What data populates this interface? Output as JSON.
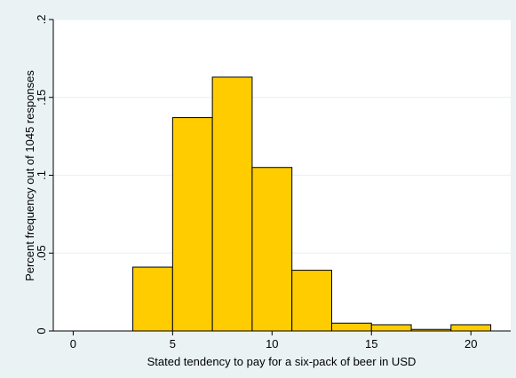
{
  "chart_data": {
    "type": "bar",
    "title": "",
    "xlabel": "Stated tendency to pay for a six-pack of beer in USD",
    "ylabel": "Percent frequency out of 1045 responses",
    "xlim": [
      -1,
      22
    ],
    "ylim": [
      0,
      0.2
    ],
    "xticks": [
      0,
      5,
      10,
      15,
      20
    ],
    "xtick_labels": [
      "0",
      "5",
      "10",
      "15",
      "20"
    ],
    "yticks": [
      0,
      0.05,
      0.1,
      0.15,
      0.2
    ],
    "ytick_labels": [
      "0",
      ".05",
      ".1",
      ".15",
      ".2"
    ],
    "grid": "horizontal",
    "legend": "none",
    "bins": [
      {
        "x0": 3,
        "x1": 5,
        "value": 0.041
      },
      {
        "x0": 5,
        "x1": 7,
        "value": 0.137
      },
      {
        "x0": 7,
        "x1": 9,
        "value": 0.163
      },
      {
        "x0": 9,
        "x1": 11,
        "value": 0.105
      },
      {
        "x0": 11,
        "x1": 13,
        "value": 0.039
      },
      {
        "x0": 13,
        "x1": 15,
        "value": 0.005
      },
      {
        "x0": 15,
        "x1": 17,
        "value": 0.004
      },
      {
        "x0": 17,
        "x1": 19,
        "value": 0.001
      },
      {
        "x0": 19,
        "x1": 21,
        "value": 0.004
      }
    ],
    "colors": {
      "bar_fill": "#ffcc00",
      "bar_stroke": "#000000",
      "plot_background": "#ffffff",
      "outer_background": "#eaf2f3",
      "grid": "#eaf2f3"
    }
  }
}
